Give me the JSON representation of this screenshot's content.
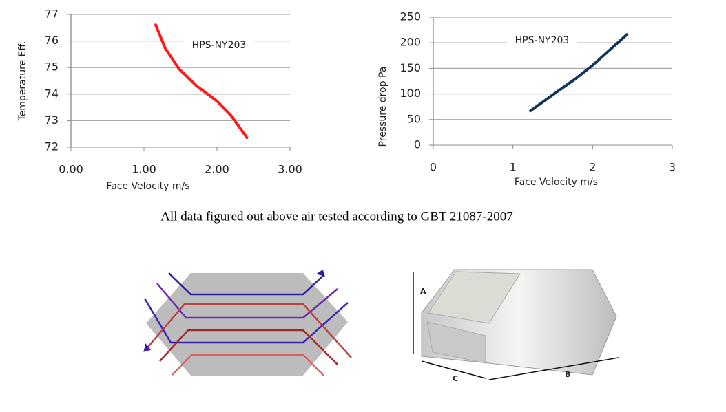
{
  "chart_data": [
    {
      "type": "line",
      "xlabel": "Face Velocity m/s",
      "ylabel": "Temperature Eff.",
      "x": [
        1.16,
        1.29,
        1.48,
        1.72,
        2.0,
        2.19,
        2.41
      ],
      "series": [
        {
          "name": "HPS-NY203",
          "color": "#ff1a1a",
          "values": [
            76.61,
            75.73,
            74.95,
            74.31,
            73.74,
            73.2,
            72.36
          ]
        }
      ],
      "xlim": [
        0,
        3
      ],
      "xticks": [
        {
          "value": 0,
          "label": "0.00"
        },
        {
          "value": 1,
          "label": "1.00"
        },
        {
          "value": 2,
          "label": "2.00"
        },
        {
          "value": 3,
          "label": "3.00"
        }
      ],
      "ylim": [
        72,
        77
      ],
      "yticks": [
        72,
        73,
        74,
        75,
        76,
        77
      ],
      "grid": true
    },
    {
      "type": "line",
      "xlabel": "Face Velocity m/s",
      "ylabel": "Pressure drop Pa",
      "x": [
        1.22,
        1.56,
        1.78,
        2.0,
        2.43
      ],
      "series": [
        {
          "name": "HPS-NY203",
          "color": "#12355b",
          "values": [
            67,
            105,
            129,
            156,
            216
          ]
        }
      ],
      "xlim": [
        0,
        3
      ],
      "xticks": [
        0,
        1,
        2,
        3
      ],
      "ylim": [
        0,
        250
      ],
      "yticks": [
        0,
        50,
        100,
        150,
        200,
        250
      ],
      "grid": true
    }
  ],
  "caption": "All data figured out above air tested according to GBT 21087-2007",
  "diagram": {
    "labels": [
      "A",
      "B",
      "C"
    ]
  }
}
